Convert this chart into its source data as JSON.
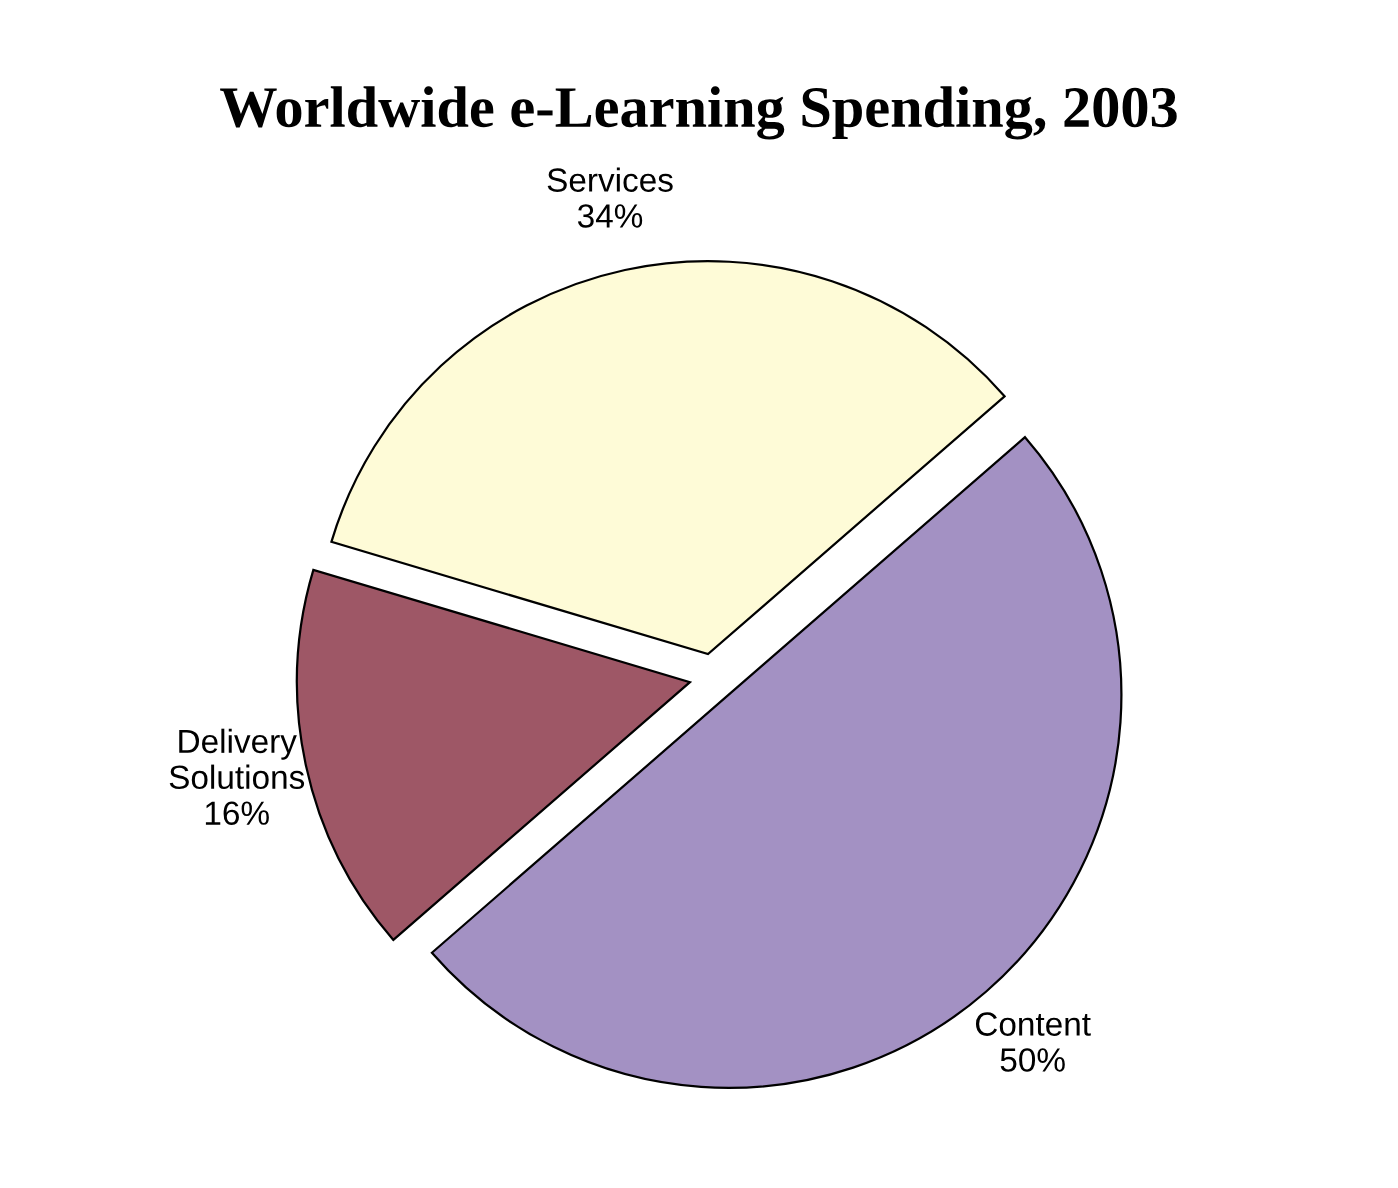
{
  "chart_data": {
    "type": "pie",
    "title": "Worldwide e-Learning Spending, 2003",
    "categories": [
      "Content",
      "Delivery Solutions",
      "Services"
    ],
    "values": [
      50,
      16,
      34
    ],
    "value_labels": [
      "50%",
      "16%",
      "34%"
    ],
    "colors": [
      "#a391c3",
      "#9e5766",
      "#fefbd7"
    ]
  }
}
